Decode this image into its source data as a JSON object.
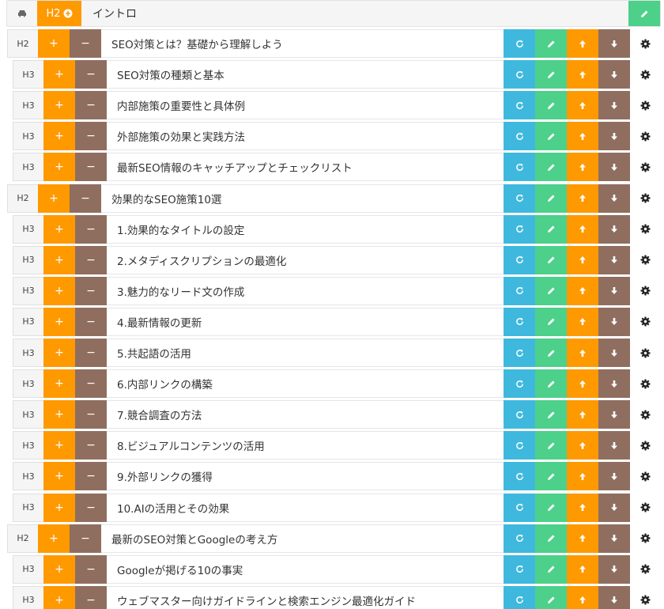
{
  "intro": {
    "tag": "H2",
    "title": "イントロ"
  },
  "rows": [
    {
      "tag": "H2",
      "title": "SEO対策とは？基礎から理解しよう"
    },
    {
      "tag": "H3",
      "title": "SEO対策の種類と基本"
    },
    {
      "tag": "H3",
      "title": "内部施策の重要性と具体例"
    },
    {
      "tag": "H3",
      "title": "外部施策の効果と実践方法"
    },
    {
      "tag": "H3",
      "title": "最新SEO情報のキャッチアップとチェックリスト"
    },
    {
      "tag": "H2",
      "title": "効果的なSEO施策10選"
    },
    {
      "tag": "H3",
      "title": "1.効果的なタイトルの設定"
    },
    {
      "tag": "H3",
      "title": "2.メタディスクリプションの最適化"
    },
    {
      "tag": "H3",
      "title": "3.魅力的なリード文の作成"
    },
    {
      "tag": "H3",
      "title": "4.最新情報の更新"
    },
    {
      "tag": "H3",
      "title": "5.共起語の活用"
    },
    {
      "tag": "H3",
      "title": "6.内部リンクの構築"
    },
    {
      "tag": "H3",
      "title": "7.競合調査の方法"
    },
    {
      "tag": "H3",
      "title": "8.ビジュアルコンテンツの活用"
    },
    {
      "tag": "H3",
      "title": "9.外部リンクの獲得"
    },
    {
      "tag": "H3",
      "title": "10.AIの活用とその効果"
    },
    {
      "tag": "H2",
      "title": "最新のSEO対策とGoogleの考え方"
    },
    {
      "tag": "H3",
      "title": "Googleが掲げる10の事実"
    },
    {
      "tag": "H3",
      "title": "ウェブマスター向けガイドラインと検索エンジン最適化ガイド"
    }
  ],
  "buttons": {
    "plus": "+",
    "minus": "−"
  },
  "icons": {
    "intro": "car-icon",
    "add": "plus-circle-icon",
    "refresh": "refresh-icon",
    "edit": "pencil-icon",
    "up": "arrow-up-icon",
    "down": "arrow-down-icon",
    "settings": "gear-icon"
  },
  "colors": {
    "orange": "#ff9900",
    "brown": "#8f6e60",
    "green": "#4dd08a",
    "blue": "#3fb8de"
  }
}
